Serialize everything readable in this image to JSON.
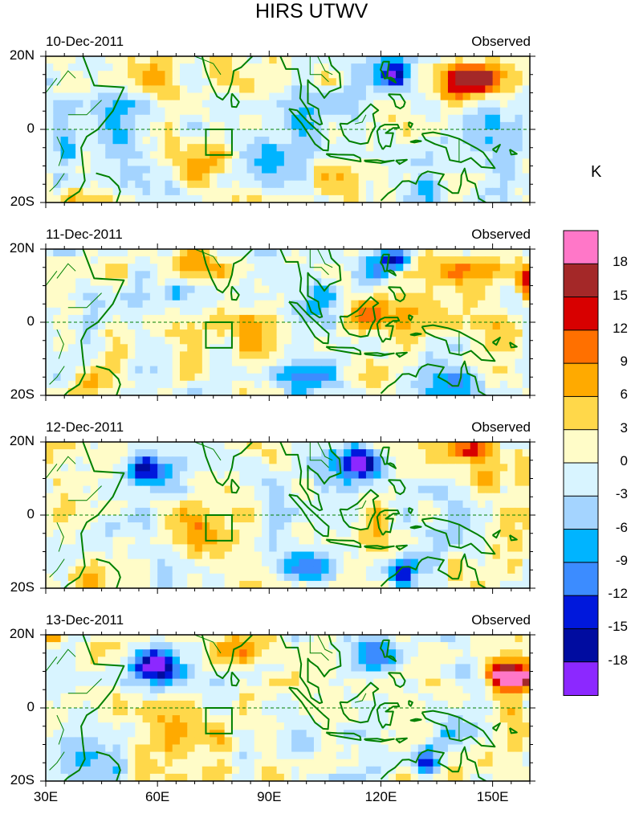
{
  "title": "HIRS UTWV",
  "chart_data": {
    "type": "heatmap",
    "title": "HIRS UTWV",
    "units": "K",
    "xlabel_ticks": [
      "30E",
      "60E",
      "90E",
      "120E",
      "150E"
    ],
    "x_ticks_deg": [
      30,
      60,
      90,
      120,
      150
    ],
    "xlim": [
      30,
      160
    ],
    "ylim": [
      -20,
      20
    ],
    "y_tick_labels": [
      "20N",
      "0",
      "20S"
    ],
    "y_ticks_deg": [
      20,
      0,
      -20
    ],
    "panels": [
      {
        "date": "10-Dec-2011",
        "label": "Observed",
        "features": [
          {
            "lon": 148,
            "lat": 14,
            "value": 12,
            "sx": 10,
            "sy": 4
          },
          {
            "lon": 140,
            "lat": 14,
            "value": 8,
            "sx": 10,
            "sy": 6
          },
          {
            "lon": 124,
            "lat": 15,
            "value": -14,
            "sx": 4,
            "sy": 3
          },
          {
            "lon": 120,
            "lat": 14,
            "value": -9,
            "sx": 6,
            "sy": 5
          },
          {
            "lon": 50,
            "lat": -2,
            "value": -8,
            "sx": 8,
            "sy": 8
          },
          {
            "lon": 36,
            "lat": -6,
            "value": -9,
            "sx": 4,
            "sy": 4
          },
          {
            "lon": 40,
            "lat": -20,
            "value": 5,
            "sx": 5,
            "sy": 4
          },
          {
            "lon": 68,
            "lat": -8,
            "value": 7,
            "sx": 8,
            "sy": 7
          },
          {
            "lon": 84,
            "lat": 12,
            "value": 5,
            "sx": 8,
            "sy": 6
          },
          {
            "lon": 100,
            "lat": 2,
            "value": -6,
            "sx": 6,
            "sy": 5
          },
          {
            "lon": 86,
            "lat": -8,
            "value": -7,
            "sx": 7,
            "sy": 6
          },
          {
            "lon": 108,
            "lat": -10,
            "value": 5,
            "sx": 6,
            "sy": 5
          },
          {
            "lon": 150,
            "lat": 2,
            "value": -5,
            "sx": 6,
            "sy": 5
          },
          {
            "lon": 132,
            "lat": -16,
            "value": -8,
            "sx": 5,
            "sy": 4
          },
          {
            "lon": 60,
            "lat": 14,
            "value": 4,
            "sx": 6,
            "sy": 5
          }
        ]
      },
      {
        "date": "11-Dec-2011",
        "label": "Observed",
        "features": [
          {
            "lon": 124,
            "lat": 17,
            "value": -14,
            "sx": 4,
            "sy": 3
          },
          {
            "lon": 118,
            "lat": 14,
            "value": -8,
            "sx": 6,
            "sy": 5
          },
          {
            "lon": 117,
            "lat": 2,
            "value": 10,
            "sx": 5,
            "sy": 4
          },
          {
            "lon": 126,
            "lat": 1,
            "value": 6,
            "sx": 6,
            "sy": 5
          },
          {
            "lon": 145,
            "lat": 15,
            "value": 7,
            "sx": 10,
            "sy": 5
          },
          {
            "lon": 160,
            "lat": 12,
            "value": 12,
            "sx": 4,
            "sy": 4
          },
          {
            "lon": 70,
            "lat": 16,
            "value": 6,
            "sx": 8,
            "sy": 4
          },
          {
            "lon": 68,
            "lat": -4,
            "value": 6,
            "sx": 7,
            "sy": 6
          },
          {
            "lon": 42,
            "lat": -18,
            "value": 7,
            "sx": 6,
            "sy": 4
          },
          {
            "lon": 48,
            "lat": 5,
            "value": -6,
            "sx": 7,
            "sy": 5
          },
          {
            "lon": 65,
            "lat": 8,
            "value": -9,
            "sx": 4,
            "sy": 3
          },
          {
            "lon": 100,
            "lat": 6,
            "value": -5,
            "sx": 7,
            "sy": 6
          },
          {
            "lon": 100,
            "lat": -15,
            "value": -9,
            "sx": 8,
            "sy": 4
          },
          {
            "lon": 140,
            "lat": -16,
            "value": -12,
            "sx": 7,
            "sy": 4
          },
          {
            "lon": 148,
            "lat": -2,
            "value": 5,
            "sx": 8,
            "sy": 5
          },
          {
            "lon": 86,
            "lat": -5,
            "value": 4,
            "sx": 6,
            "sy": 6
          }
        ]
      },
      {
        "date": "12-Dec-2011",
        "label": "Observed",
        "features": [
          {
            "lon": 56,
            "lat": 13,
            "value": -15,
            "sx": 4,
            "sy": 3
          },
          {
            "lon": 60,
            "lat": 12,
            "value": -8,
            "sx": 7,
            "sy": 5
          },
          {
            "lon": 115,
            "lat": 15,
            "value": -13,
            "sx": 4,
            "sy": 4
          },
          {
            "lon": 112,
            "lat": 12,
            "value": -7,
            "sx": 6,
            "sy": 6
          },
          {
            "lon": 144,
            "lat": 18,
            "value": 12,
            "sx": 6,
            "sy": 3
          },
          {
            "lon": 152,
            "lat": 12,
            "value": 8,
            "sx": 9,
            "sy": 6
          },
          {
            "lon": 117,
            "lat": 0,
            "value": 6,
            "sx": 6,
            "sy": 5
          },
          {
            "lon": 72,
            "lat": -4,
            "value": 6,
            "sx": 8,
            "sy": 7
          },
          {
            "lon": 100,
            "lat": -14,
            "value": -10,
            "sx": 7,
            "sy": 4
          },
          {
            "lon": 126,
            "lat": -16,
            "value": -14,
            "sx": 3,
            "sy": 4
          },
          {
            "lon": 136,
            "lat": -6,
            "value": -6,
            "sx": 7,
            "sy": 5
          },
          {
            "lon": 40,
            "lat": -18,
            "value": 5,
            "sx": 8,
            "sy": 4
          },
          {
            "lon": 92,
            "lat": 8,
            "value": -5,
            "sx": 7,
            "sy": 5
          },
          {
            "lon": 48,
            "lat": -5,
            "value": -7,
            "sx": 4,
            "sy": 4
          }
        ]
      },
      {
        "date": "13-Dec-2011",
        "label": "Observed",
        "features": [
          {
            "lon": 60,
            "lat": 12,
            "value": -15,
            "sx": 5,
            "sy": 4
          },
          {
            "lon": 60,
            "lat": 10,
            "value": -9,
            "sx": 9,
            "sy": 6
          },
          {
            "lon": 156,
            "lat": 8,
            "value": 20,
            "sx": 4,
            "sy": 2
          },
          {
            "lon": 154,
            "lat": 9,
            "value": 12,
            "sx": 6,
            "sy": 4
          },
          {
            "lon": 150,
            "lat": 10,
            "value": 6,
            "sx": 9,
            "sy": 6
          },
          {
            "lon": 32,
            "lat": 19,
            "value": 12,
            "sx": 3,
            "sy": 2
          },
          {
            "lon": 80,
            "lat": 16,
            "value": 6,
            "sx": 6,
            "sy": 4
          },
          {
            "lon": 68,
            "lat": -6,
            "value": 6,
            "sx": 9,
            "sy": 7
          },
          {
            "lon": 132,
            "lat": -15,
            "value": -14,
            "sx": 3,
            "sy": 4
          },
          {
            "lon": 100,
            "lat": -10,
            "value": -7,
            "sx": 8,
            "sy": 6
          },
          {
            "lon": 118,
            "lat": 14,
            "value": -8,
            "sx": 6,
            "sy": 5
          },
          {
            "lon": 142,
            "lat": 10,
            "value": -7,
            "sx": 4,
            "sy": 4
          },
          {
            "lon": 138,
            "lat": -6,
            "value": -5,
            "sx": 8,
            "sy": 6
          },
          {
            "lon": 42,
            "lat": -14,
            "value": -6,
            "sx": 6,
            "sy": 5
          },
          {
            "lon": 158,
            "lat": -8,
            "value": 6,
            "sx": 4,
            "sy": 6
          }
        ]
      }
    ],
    "colorbar": {
      "levels": [
        "18",
        "15",
        "12",
        "9",
        "6",
        "3",
        "0",
        "-3",
        "-6",
        "-9",
        "-12",
        "-15",
        "-18"
      ],
      "colors": [
        "#ff77c8",
        "#a42828",
        "#d80000",
        "#ff7000",
        "#ffaa00",
        "#ffd84a",
        "#fffcc8",
        "#d8f4ff",
        "#a4d4ff",
        "#00b4ff",
        "#3c8cff",
        "#0018dc",
        "#000ca0",
        "#8c28ff"
      ]
    },
    "box": {
      "lon_min": 73,
      "lon_max": 80,
      "lat_min": -7,
      "lat_max": 0
    }
  },
  "line_color": "#008000"
}
